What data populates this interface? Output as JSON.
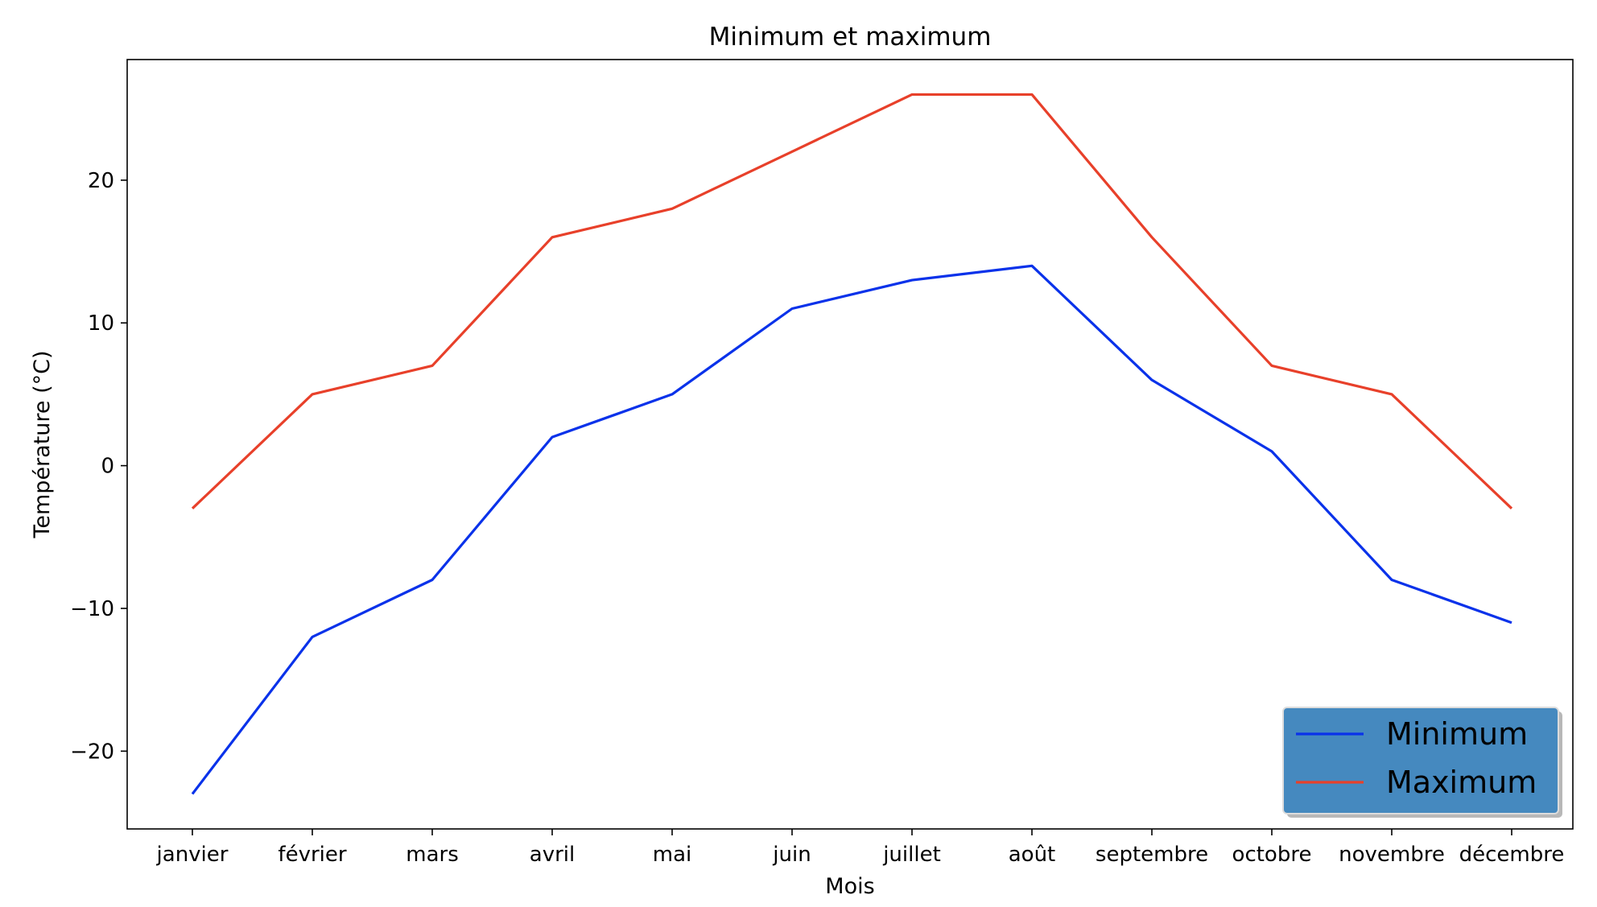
{
  "chart_data": {
    "type": "line",
    "title": "Minimum et maximum",
    "xlabel": "Mois",
    "ylabel": "Température (°C)",
    "categories": [
      "janvier",
      "février",
      "mars",
      "avril",
      "mai",
      "juin",
      "juillet",
      "août",
      "septembre",
      "octobre",
      "novembre",
      "décembre"
    ],
    "series": [
      {
        "name": "Minimum",
        "color": "#0a32ea",
        "values": [
          -23,
          -12,
          -8,
          2,
          5,
          11,
          13,
          14,
          6,
          1,
          -8,
          -11
        ]
      },
      {
        "name": "Maximum",
        "color": "#e8402a",
        "values": [
          -3,
          5,
          7,
          16,
          18,
          22,
          26,
          26,
          16,
          7,
          5,
          -3
        ]
      }
    ],
    "ylim": [
      -25.45,
      28.45
    ],
    "yticks": [
      -20,
      -10,
      0,
      10,
      20
    ],
    "ytick_labels": [
      "−20",
      "−10",
      "0",
      "10",
      "20"
    ],
    "grid": false,
    "legend": {
      "position": "bottom-right",
      "background": "#4589bf"
    }
  }
}
